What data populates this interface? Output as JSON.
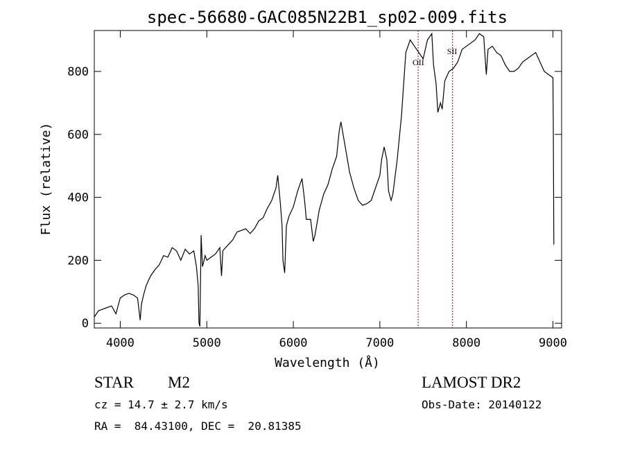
{
  "chart_data": {
    "type": "line",
    "title": "spec-56680-GAC085N22B1_sp02-009.fits",
    "xlabel": "Wavelength (Å)",
    "ylabel": "Flux (relative)",
    "xlim": [
      3700,
      9100
    ],
    "ylim": [
      -15,
      930
    ],
    "x_ticks": [
      4000,
      5000,
      6000,
      7000,
      8000,
      9000
    ],
    "y_ticks": [
      0,
      200,
      400,
      600,
      800
    ],
    "grid": false,
    "series_color": "#000000",
    "marker_color": "#8b0000",
    "series": [
      {
        "x": [
          3700,
          3750,
          3800,
          3850,
          3900,
          3950,
          3980,
          4000,
          4050,
          4100,
          4150,
          4200,
          4230,
          4245,
          4270,
          4300,
          4350,
          4400,
          4450,
          4500,
          4550,
          4600,
          4650,
          4700,
          4750,
          4800,
          4850,
          4880,
          4900,
          4910,
          4920,
          4935,
          4950,
          4960,
          4980,
          5000,
          5050,
          5100,
          5150,
          5170,
          5185,
          5200,
          5250,
          5300,
          5350,
          5400,
          5450,
          5500,
          5550,
          5600,
          5650,
          5700,
          5750,
          5800,
          5820,
          5850,
          5870,
          5880,
          5900,
          5920,
          5950,
          6000,
          6050,
          6100,
          6130,
          6150,
          6200,
          6230,
          6250,
          6300,
          6350,
          6400,
          6450,
          6500,
          6530,
          6550,
          6600,
          6650,
          6700,
          6750,
          6800,
          6850,
          6900,
          6950,
          7000,
          7020,
          7050,
          7080,
          7100,
          7130,
          7150,
          7200,
          7250,
          7300,
          7350,
          7400,
          7450,
          7500,
          7550,
          7600,
          7620,
          7650,
          7670,
          7700,
          7720,
          7750,
          7800,
          7850,
          7900,
          7950,
          8000,
          8050,
          8100,
          8150,
          8200,
          8230,
          8250,
          8300,
          8350,
          8400,
          8450,
          8500,
          8550,
          8600,
          8650,
          8700,
          8750,
          8800,
          8850,
          8900,
          8950,
          9000,
          9005,
          9010
        ],
        "y": [
          20,
          40,
          45,
          50,
          55,
          30,
          60,
          80,
          90,
          95,
          90,
          80,
          10,
          60,
          90,
          120,
          150,
          170,
          185,
          215,
          210,
          240,
          230,
          200,
          235,
          220,
          230,
          180,
          120,
          0,
          -10,
          280,
          180,
          190,
          215,
          200,
          210,
          220,
          240,
          150,
          230,
          235,
          250,
          265,
          290,
          295,
          300,
          285,
          300,
          325,
          335,
          365,
          390,
          430,
          470,
          380,
          310,
          200,
          160,
          310,
          340,
          370,
          420,
          460,
          390,
          330,
          330,
          260,
          280,
          360,
          410,
          440,
          490,
          530,
          610,
          640,
          560,
          480,
          430,
          390,
          375,
          380,
          390,
          430,
          470,
          520,
          560,
          520,
          420,
          390,
          410,
          520,
          660,
          860,
          900,
          880,
          860,
          840,
          900,
          920,
          820,
          760,
          670,
          700,
          680,
          770,
          800,
          810,
          830,
          870,
          880,
          890,
          900,
          920,
          910,
          790,
          870,
          880,
          860,
          850,
          820,
          800,
          800,
          810,
          830,
          840,
          850,
          860,
          830,
          800,
          790,
          780,
          600,
          250
        ]
      }
    ],
    "annotations": [
      {
        "label": "OII",
        "x": 7442
      },
      {
        "label": "SII",
        "x": 7840
      }
    ]
  },
  "info": {
    "object_type": "STAR",
    "subclass": "M2",
    "survey": "LAMOST DR2",
    "cz": "cz = 14.7 ± 2.7 km/s",
    "obs_date": "Obs-Date: 20140122",
    "coords": "RA =  84.43100, DEC =  20.81385"
  }
}
